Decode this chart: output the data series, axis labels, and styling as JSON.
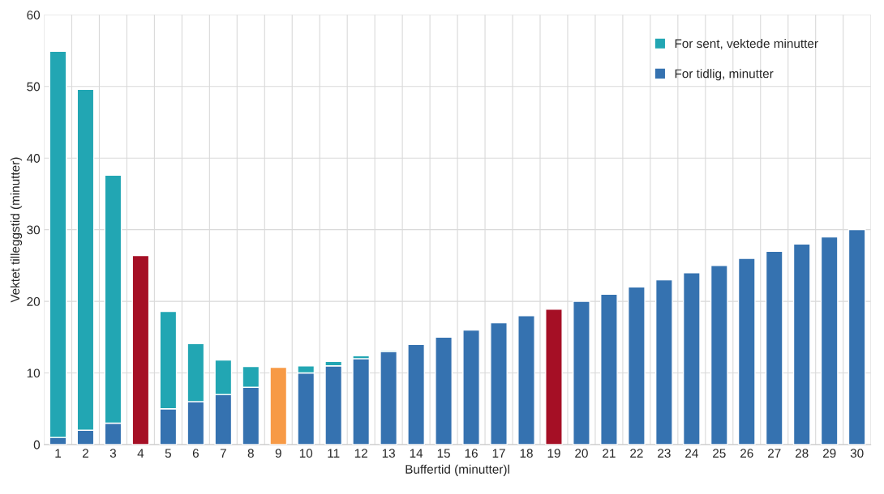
{
  "chart_data": {
    "type": "bar",
    "stacked": true,
    "xlabel": "Buffertid (minutter)l",
    "ylabel": "Vektet tilleggstid (minutter)",
    "categories": [
      "1",
      "2",
      "3",
      "4",
      "5",
      "6",
      "7",
      "8",
      "9",
      "10",
      "11",
      "12",
      "13",
      "14",
      "15",
      "16",
      "17",
      "18",
      "19",
      "20",
      "21",
      "22",
      "23",
      "24",
      "25",
      "26",
      "27",
      "28",
      "29",
      "30"
    ],
    "series": [
      {
        "name": "For tidlig, minutter",
        "color": "#3572b0",
        "colors": [
          "#3572b0",
          "#3572b0",
          "#3572b0",
          "#a50f25",
          "#3572b0",
          "#3572b0",
          "#3572b0",
          "#3572b0",
          "#f79a46",
          "#3572b0",
          "#3572b0",
          "#3572b0",
          "#3572b0",
          "#3572b0",
          "#3572b0",
          "#3572b0",
          "#3572b0",
          "#3572b0",
          "#a50f25",
          "#3572b0",
          "#3572b0",
          "#3572b0",
          "#3572b0",
          "#3572b0",
          "#3572b0",
          "#3572b0",
          "#3572b0",
          "#3572b0",
          "#3572b0",
          "#3572b0"
        ],
        "values": [
          1,
          2,
          3,
          26.4,
          5,
          6,
          7,
          8,
          10.8,
          10,
          11,
          12,
          13,
          14,
          15,
          16,
          17,
          18,
          18.9,
          20,
          21,
          22,
          23,
          24,
          25,
          26,
          27,
          28,
          29,
          30
        ]
      },
      {
        "name": "For sent, vektede minutter",
        "color": "#22a6b3",
        "values": [
          53.9,
          47.6,
          34.6,
          null,
          13.6,
          8.1,
          4.8,
          2.9,
          null,
          1.0,
          0.6,
          0.4,
          0.2,
          0.1,
          null,
          null,
          null,
          null,
          null,
          null,
          null,
          null,
          null,
          null,
          null,
          null,
          null,
          null,
          null,
          null
        ]
      }
    ],
    "ylim": [
      0,
      60
    ],
    "yticks": [
      0,
      10,
      20,
      30,
      40,
      50,
      60
    ],
    "grid": true,
    "legend": "top right"
  }
}
